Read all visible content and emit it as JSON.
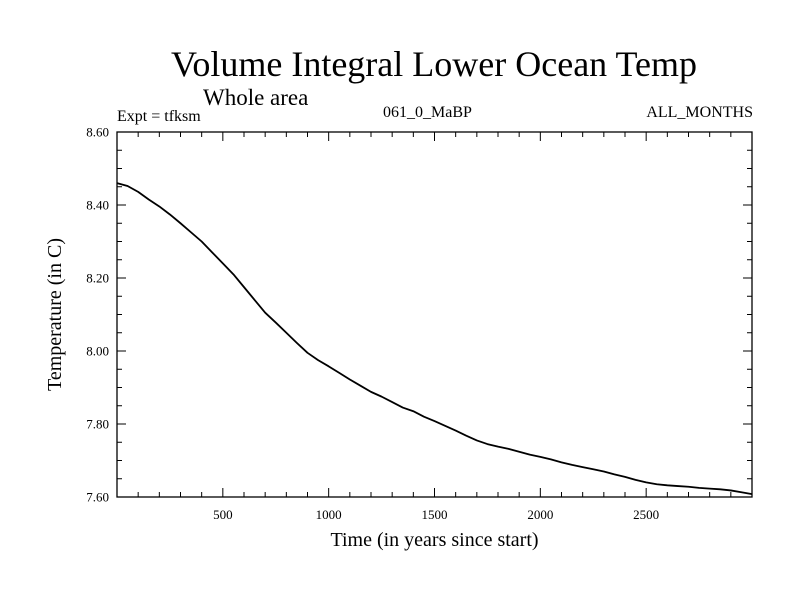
{
  "chart_data": {
    "type": "line",
    "title": "Volume Integral Lower Ocean Temp",
    "subtitle": "Whole area",
    "experiment": "Expt = tfksm",
    "run_id": "061_0_MaBP",
    "period": "ALL_MONTHS",
    "xlabel": "Time (in years since start)",
    "ylabel": "Temperature (in C)",
    "xlim": [
      0,
      3000
    ],
    "ylim": [
      7.6,
      8.6
    ],
    "x_ticks": [
      500,
      1000,
      1500,
      2000,
      2500
    ],
    "y_ticks": [
      7.6,
      7.8,
      8.0,
      8.2,
      8.4,
      8.6
    ],
    "y_tick_labels": [
      "7.60",
      "7.80",
      "8.00",
      "8.20",
      "8.40",
      "8.60"
    ],
    "grid": false,
    "series": [
      {
        "name": "Volume Integral Lower Ocean Temp",
        "color": "#000000",
        "x": [
          0,
          50,
          100,
          150,
          200,
          250,
          300,
          350,
          400,
          450,
          500,
          550,
          600,
          650,
          700,
          750,
          800,
          850,
          900,
          950,
          1000,
          1050,
          1100,
          1150,
          1200,
          1250,
          1300,
          1350,
          1400,
          1450,
          1500,
          1550,
          1600,
          1650,
          1700,
          1750,
          1800,
          1850,
          1900,
          1950,
          2000,
          2050,
          2100,
          2150,
          2200,
          2250,
          2300,
          2350,
          2400,
          2450,
          2500,
          2550,
          2600,
          2650,
          2700,
          2750,
          2800,
          2850,
          2900,
          2950,
          3000
        ],
        "values": [
          8.46,
          8.452,
          8.436,
          8.415,
          8.396,
          8.374,
          8.35,
          8.325,
          8.3,
          8.27,
          8.24,
          8.21,
          8.175,
          8.14,
          8.105,
          8.078,
          8.05,
          8.022,
          7.995,
          7.975,
          7.958,
          7.94,
          7.922,
          7.905,
          7.888,
          7.875,
          7.86,
          7.845,
          7.835,
          7.82,
          7.808,
          7.795,
          7.782,
          7.768,
          7.755,
          7.745,
          7.738,
          7.732,
          7.724,
          7.716,
          7.71,
          7.703,
          7.695,
          7.688,
          7.682,
          7.676,
          7.67,
          7.662,
          7.655,
          7.647,
          7.64,
          7.635,
          7.632,
          7.63,
          7.628,
          7.625,
          7.623,
          7.621,
          7.618,
          7.613,
          7.608
        ]
      }
    ]
  }
}
